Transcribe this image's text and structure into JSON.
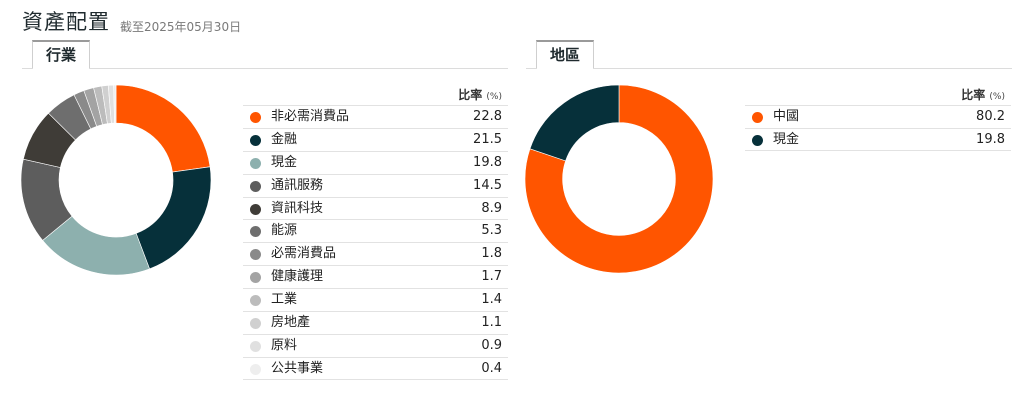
{
  "header": {
    "title": "資產配置",
    "as_of": "截至2025年05月30日"
  },
  "chart_data": [
    {
      "type": "pie",
      "tab": "行業",
      "value_header": "比率",
      "value_unit": "(%)",
      "categories": [
        "非必需消費品",
        "金融",
        "現金",
        "通訊服務",
        "資訊科技",
        "能源",
        "必需消費品",
        "健康護理",
        "工業",
        "房地產",
        "原料",
        "公共事業"
      ],
      "values": [
        22.8,
        21.5,
        19.8,
        14.5,
        8.9,
        5.3,
        1.8,
        1.7,
        1.4,
        1.1,
        0.9,
        0.4
      ],
      "colors": [
        "#ff5500",
        "#06303a",
        "#8db0ae",
        "#5d5d5d",
        "#3f3c37",
        "#6e6e6e",
        "#8a8a8a",
        "#a3a3a3",
        "#bcbcbc",
        "#d0d0d0",
        "#e0e0e0",
        "#eeeeee"
      ]
    },
    {
      "type": "pie",
      "tab": "地區",
      "value_header": "比率",
      "value_unit": "(%)",
      "categories": [
        "中國",
        "現金"
      ],
      "values": [
        80.2,
        19.8
      ],
      "colors": [
        "#ff5500",
        "#06303a"
      ]
    }
  ]
}
